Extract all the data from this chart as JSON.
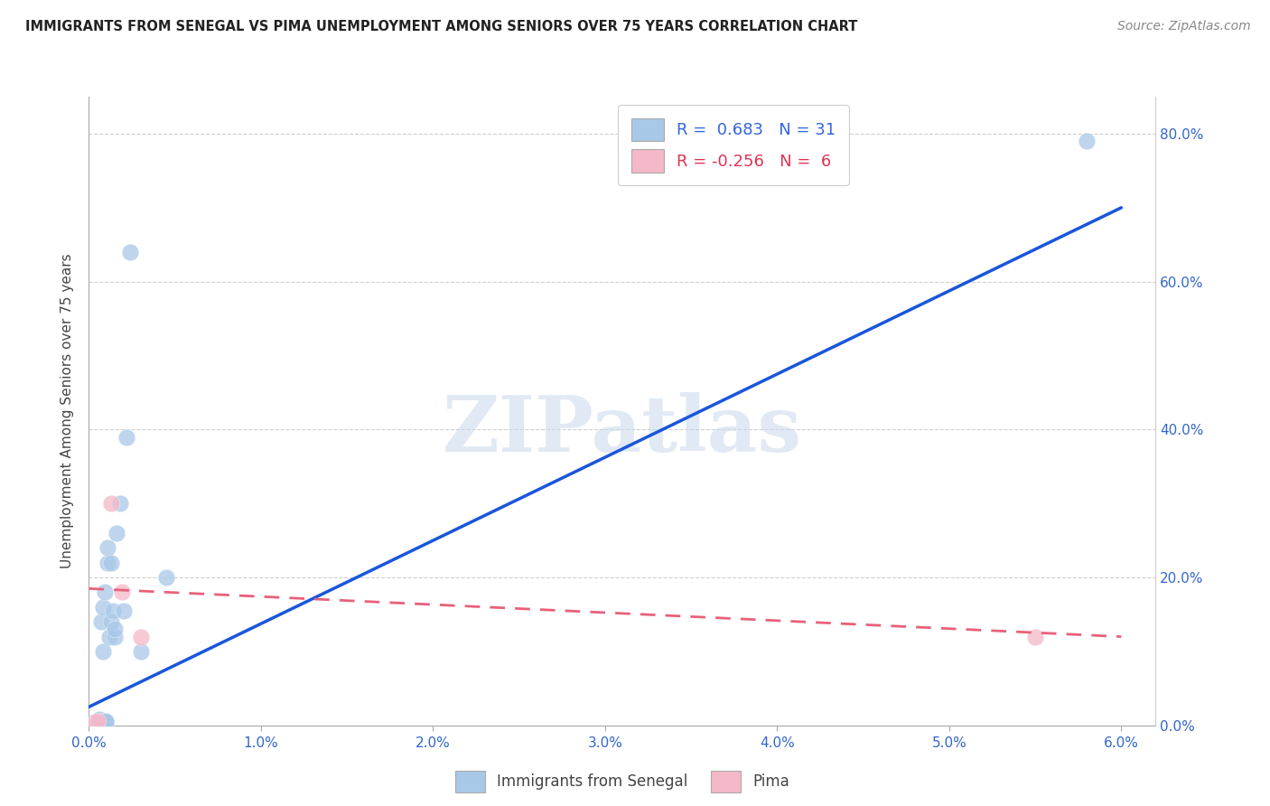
{
  "title": "IMMIGRANTS FROM SENEGAL VS PIMA UNEMPLOYMENT AMONG SENIORS OVER 75 YEARS CORRELATION CHART",
  "source": "Source: ZipAtlas.com",
  "ylabel": "Unemployment Among Seniors over 75 years",
  "watermark": "ZIPatlas",
  "blue_scatter_x": [
    0.0003,
    0.0004,
    0.0005,
    0.0005,
    0.0006,
    0.0006,
    0.0007,
    0.0007,
    0.0007,
    0.0008,
    0.0008,
    0.0009,
    0.001,
    0.001,
    0.001,
    0.0011,
    0.0011,
    0.0012,
    0.0013,
    0.0013,
    0.0014,
    0.0015,
    0.0015,
    0.0016,
    0.0018,
    0.002,
    0.0022,
    0.0024,
    0.003,
    0.0045,
    0.058
  ],
  "blue_scatter_y": [
    0.005,
    0.003,
    0.004,
    0.005,
    0.007,
    0.008,
    0.006,
    0.005,
    0.14,
    0.1,
    0.16,
    0.18,
    0.005,
    0.005,
    0.006,
    0.22,
    0.24,
    0.12,
    0.22,
    0.14,
    0.155,
    0.12,
    0.13,
    0.26,
    0.3,
    0.155,
    0.39,
    0.64,
    0.1,
    0.2,
    0.79
  ],
  "pink_scatter_x": [
    0.0004,
    0.0005,
    0.0013,
    0.0019,
    0.003,
    0.055
  ],
  "pink_scatter_y": [
    0.005,
    0.006,
    0.3,
    0.18,
    0.12,
    0.12
  ],
  "blue_line_x": [
    0.0,
    0.06
  ],
  "blue_line_y": [
    0.025,
    0.7
  ],
  "pink_line_x": [
    0.0,
    0.06
  ],
  "pink_line_y": [
    0.185,
    0.12
  ],
  "xlim": [
    0.0,
    0.062
  ],
  "ylim": [
    0.0,
    0.85
  ],
  "x_ticks": [
    0.0,
    0.01,
    0.02,
    0.03,
    0.04,
    0.05,
    0.06
  ],
  "x_tick_labels": [
    "0.0%",
    "1.0%",
    "2.0%",
    "3.0%",
    "4.0%",
    "5.0%",
    "6.0%"
  ],
  "y_ticks": [
    0.0,
    0.2,
    0.4,
    0.6,
    0.8
  ],
  "y_tick_labels": [
    "0.0%",
    "20.0%",
    "40.0%",
    "60.0%",
    "80.0%"
  ],
  "blue_color": "#a8c8e8",
  "blue_line_color": "#1a56db",
  "pink_color": "#f5b8c8",
  "pink_line_color": "#e8607a",
  "background_color": "#ffffff",
  "grid_color": "#d0d0d0",
  "legend_blue_label": "R =  0.683   N = 31",
  "legend_pink_label": "R = -0.256   N =  6",
  "legend_blue_text_color": "#3366dd",
  "legend_pink_text_color": "#dd3355",
  "axis_label_color": "#3366cc",
  "title_color": "#222222",
  "source_color": "#888888",
  "ylabel_color": "#444444",
  "watermark_color": "#c8d8ec"
}
